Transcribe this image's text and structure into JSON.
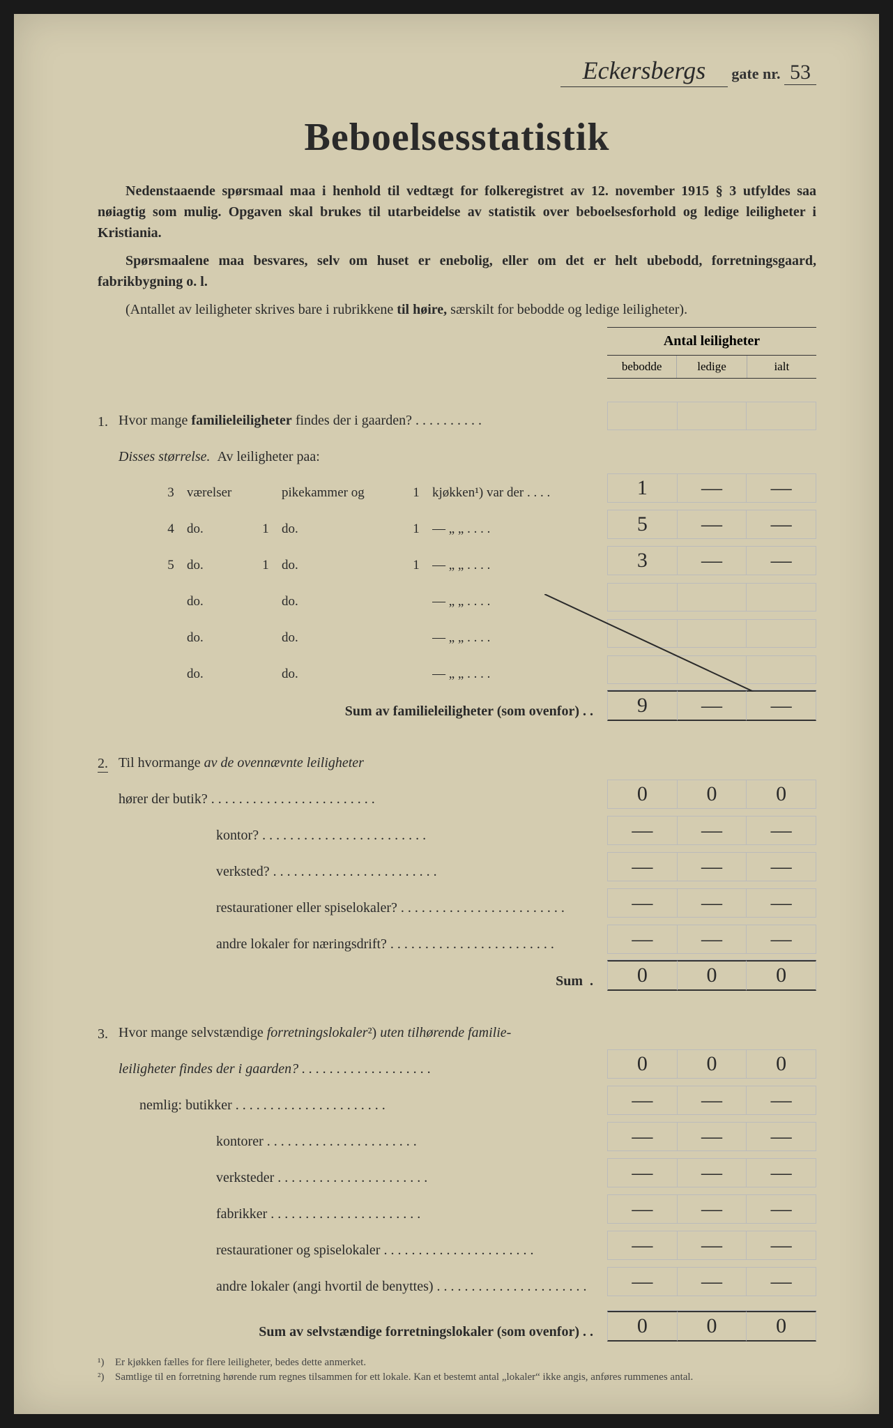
{
  "header": {
    "street_name": "Eckersbergs",
    "gate_label": "gate nr.",
    "gate_nr": "53"
  },
  "title": "Beboelsesstatistik",
  "intro": {
    "p1": "Nedenstaaende spørsmaal maa i henhold til vedtægt for folkeregistret av 12. november 1915 § 3 utfyldes saa nøiagtig som mulig. Opgaven skal brukes til utarbeidelse av statistik over beboelsesforhold og ledige leiligheter i Kristiania.",
    "p2": "Spørsmaalene maa besvares, selv om huset er enebolig, eller om det er helt ubebodd, forretningsgaard, fabrikbygning o. l.",
    "p3": "(Antallet av leiligheter skrives bare i rubrikkene til høire, særskilt for bebodde og ledige leiligheter)."
  },
  "table_header": {
    "title": "Antal leiligheter",
    "cols": [
      "bebodde",
      "ledige",
      "ialt"
    ]
  },
  "q1": {
    "num": "1.",
    "text": "Hvor mange familieleiligheter findes der i gaarden?",
    "sub_label": "Disses størrelse.",
    "sub_text": "Av leiligheter paa:",
    "rows": [
      {
        "vaer": "3",
        "vaer_label": "værelser",
        "pike": "",
        "pike_label": "pikekammer og",
        "kjok": "1",
        "kjok_label": "kjøkken¹) var der",
        "c1": "1",
        "c2": "—",
        "c3": "—"
      },
      {
        "vaer": "4",
        "vaer_label": "do.",
        "pike": "1",
        "pike_label": "do.",
        "kjok": "1",
        "kjok_label": "—        „        „",
        "c1": "5",
        "c2": "—",
        "c3": "—"
      },
      {
        "vaer": "5",
        "vaer_label": "do.",
        "pike": "1",
        "pike_label": "do.",
        "kjok": "1",
        "kjok_label": "—        „        „",
        "c1": "3",
        "c2": "—",
        "c3": "—"
      },
      {
        "vaer": "",
        "vaer_label": "do.",
        "pike": "",
        "pike_label": "do.",
        "kjok": "",
        "kjok_label": "—        „        „",
        "c1": "",
        "c2": "",
        "c3": ""
      },
      {
        "vaer": "",
        "vaer_label": "do.",
        "pike": "",
        "pike_label": "do.",
        "kjok": "",
        "kjok_label": "—        „        „",
        "c1": "",
        "c2": "",
        "c3": ""
      },
      {
        "vaer": "",
        "vaer_label": "do.",
        "pike": "",
        "pike_label": "do.",
        "kjok": "",
        "kjok_label": "—        „        „",
        "c1": "",
        "c2": "",
        "c3": ""
      }
    ],
    "sum_label": "Sum av familieleiligheter (som ovenfor)",
    "sum": {
      "c1": "9",
      "c2": "—",
      "c3": "—"
    }
  },
  "q2": {
    "num": "2.",
    "text": "Til hvormange av de ovennævnte leiligheter",
    "rows": [
      {
        "label": "hører der butik?",
        "c1": "0",
        "c2": "0",
        "c3": "0"
      },
      {
        "label": "kontor?",
        "c1": "—",
        "c2": "—",
        "c3": "—"
      },
      {
        "label": "verksted?",
        "c1": "—",
        "c2": "—",
        "c3": "—"
      },
      {
        "label": "restaurationer eller spiselokaler?",
        "c1": "—",
        "c2": "—",
        "c3": "—"
      },
      {
        "label": "andre lokaler for næringsdrift?",
        "c1": "—",
        "c2": "—",
        "c3": "—"
      }
    ],
    "sum_label": "Sum",
    "sum": {
      "c1": "0",
      "c2": "0",
      "c3": "0"
    }
  },
  "q3": {
    "num": "3.",
    "text1": "Hvor mange selvstændige forretningslokaler²) uten tilhørende familie-",
    "text2": "leiligheter findes der i gaarden?",
    "head": {
      "c1": "0",
      "c2": "0",
      "c3": "0"
    },
    "nemlig": "nemlig:",
    "rows": [
      {
        "label": "butikker",
        "c1": "—",
        "c2": "—",
        "c3": "—"
      },
      {
        "label": "kontorer",
        "c1": "—",
        "c2": "—",
        "c3": "—"
      },
      {
        "label": "verksteder",
        "c1": "—",
        "c2": "—",
        "c3": "—"
      },
      {
        "label": "fabrikker",
        "c1": "—",
        "c2": "—",
        "c3": "—"
      },
      {
        "label": "restaurationer og spiselokaler",
        "c1": "—",
        "c2": "—",
        "c3": "—"
      },
      {
        "label": "andre lokaler (angi hvortil de benyttes)",
        "c1": "—",
        "c2": "—",
        "c3": "—"
      }
    ],
    "sum_label": "Sum av selvstændige forretningslokaler (som ovenfor)",
    "sum": {
      "c1": "0",
      "c2": "0",
      "c3": "0"
    }
  },
  "footnotes": {
    "f1_num": "¹)",
    "f1": "Er kjøkken fælles for flere leiligheter, bedes dette anmerket.",
    "f2_num": "²)",
    "f2": "Samtlige til en forretning hørende rum regnes tilsammen for ett lokale. Kan et bestemt antal „lokaler“ ikke angis, anføres rummenes antal."
  },
  "colors": {
    "paper": "#d4ccb0",
    "ink": "#2a2a2a",
    "rule": "#333333",
    "light_rule": "#bbbbbb"
  }
}
